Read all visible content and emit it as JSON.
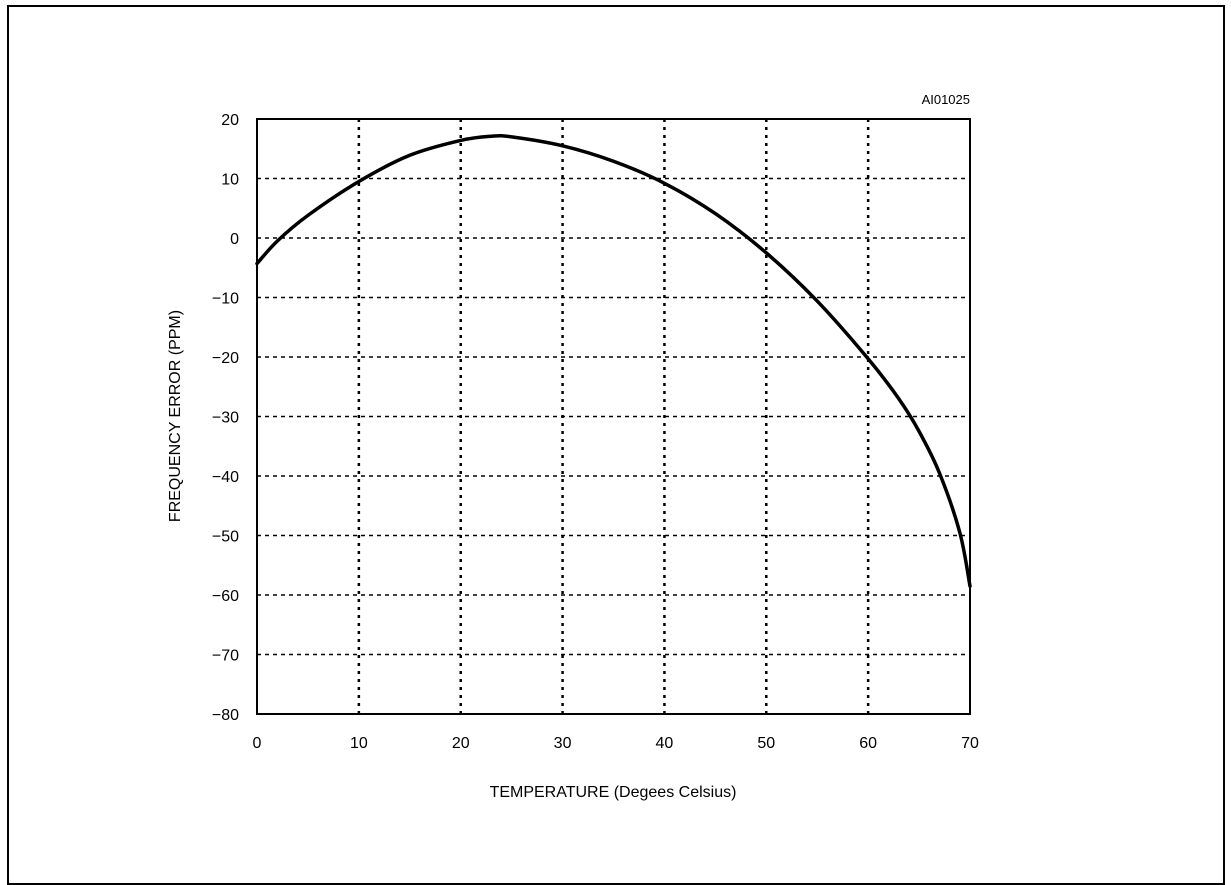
{
  "figure_code": "AI01025",
  "chart_data": {
    "type": "line",
    "xlabel": "TEMPERATURE (Degees Celsius)",
    "ylabel": "FREQUENCY ERROR (PPM)",
    "xlim": [
      0,
      70
    ],
    "ylim": [
      -80,
      20
    ],
    "x_ticks": [
      "0",
      "10",
      "20",
      "30",
      "40",
      "50",
      "60",
      "70"
    ],
    "y_ticks": [
      "20",
      "10",
      "0",
      "−10",
      "−20",
      "−30",
      "−40",
      "−50",
      "−60",
      "−70",
      "−80"
    ],
    "grid": true,
    "grid_style": "dotted",
    "series": [
      {
        "color": "#000000",
        "x": [
          0,
          2,
          5,
          10,
          15,
          20,
          23,
          25,
          30,
          35,
          40,
          45,
          50,
          55,
          60,
          63,
          65,
          67,
          69,
          70
        ],
        "y": [
          -4.3,
          -0.5,
          3.8,
          9.5,
          13.9,
          16.4,
          17.1,
          17.0,
          15.5,
          12.9,
          9.2,
          4.1,
          -2.5,
          -10.6,
          -20.3,
          -27.0,
          -32.5,
          -39.5,
          -49.5,
          -58.5
        ]
      }
    ]
  }
}
